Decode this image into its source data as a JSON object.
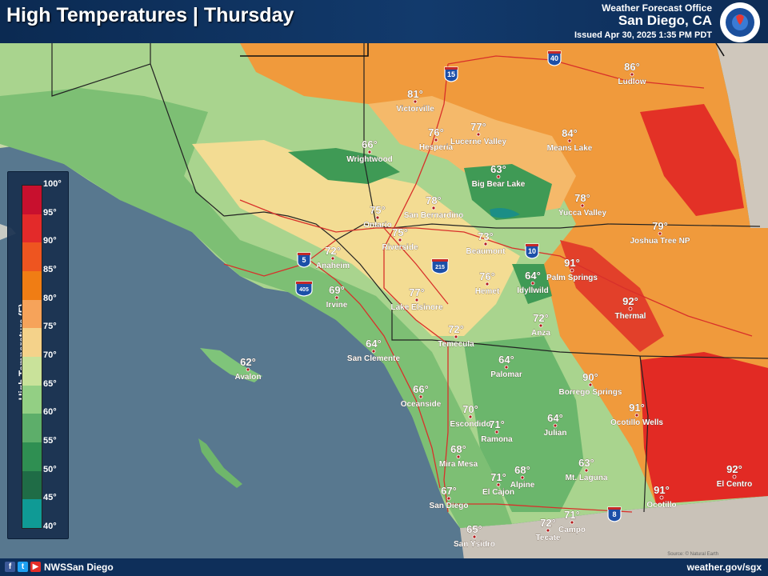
{
  "header": {
    "title": "High Temperatures | Thursday",
    "office": "Weather Forecast Office",
    "location": "San Diego, CA",
    "issued": "Issued Apr 30, 2025 1:35 PM PDT",
    "seal_text": "NATIONAL WEATHER SERVICE"
  },
  "footer": {
    "handle": "NWSSan Diego",
    "url": "weather.gov/sgx",
    "social_icons": [
      "facebook-icon",
      "twitter-icon",
      "youtube-icon"
    ]
  },
  "credit": "Source: © Natural Earth",
  "legend": {
    "title": "High Temperature (F)",
    "ticks": [
      "100°",
      "95°",
      "90°",
      "85°",
      "80°",
      "75°",
      "70°",
      "65°",
      "60°",
      "55°",
      "50°",
      "45°",
      "40°"
    ],
    "colors": [
      "#c8102e",
      "#e32a2a",
      "#ee5520",
      "#f07d14",
      "#f6a35a",
      "#f4d28a",
      "#c9e29a",
      "#93cf84",
      "#5dae6a",
      "#2f8f52",
      "#1f6c46",
      "#0f9a95",
      "#2ed3c9"
    ]
  },
  "highways": [
    {
      "label": "40",
      "type": "interstate"
    },
    {
      "label": "15",
      "type": "interstate"
    },
    {
      "label": "5",
      "type": "interstate"
    },
    {
      "label": "405",
      "type": "interstate"
    },
    {
      "label": "215",
      "type": "interstate"
    },
    {
      "label": "10",
      "type": "interstate"
    },
    {
      "label": "8",
      "type": "interstate"
    }
  ],
  "cities": [
    {
      "name": "Ludlow",
      "temp": "86°"
    },
    {
      "name": "Victorville",
      "temp": "81°"
    },
    {
      "name": "Hesperia",
      "temp": "76°"
    },
    {
      "name": "Lucerne Valley",
      "temp": "77°"
    },
    {
      "name": "Means Lake",
      "temp": "84°"
    },
    {
      "name": "Wrightwood",
      "temp": "66°"
    },
    {
      "name": "Big Bear Lake",
      "temp": "63°"
    },
    {
      "name": "San Bernardino",
      "temp": "78°"
    },
    {
      "name": "Yucca Valley",
      "temp": "78°"
    },
    {
      "name": "Ontario",
      "temp": "75°"
    },
    {
      "name": "Riverside",
      "temp": "75°"
    },
    {
      "name": "Joshua Tree NP",
      "temp": "79°"
    },
    {
      "name": "Anaheim",
      "temp": "72°"
    },
    {
      "name": "Beaumont",
      "temp": "73°"
    },
    {
      "name": "Palm Springs",
      "temp": "91°"
    },
    {
      "name": "Irvine",
      "temp": "69°"
    },
    {
      "name": "Hemet",
      "temp": "76°"
    },
    {
      "name": "Idyllwild",
      "temp": "64°"
    },
    {
      "name": "Lake Elsinore",
      "temp": "77°"
    },
    {
      "name": "Thermal",
      "temp": "92°"
    },
    {
      "name": "Anza",
      "temp": "72°"
    },
    {
      "name": "Temecula",
      "temp": "72°"
    },
    {
      "name": "San Clemente",
      "temp": "64°"
    },
    {
      "name": "Avalon",
      "temp": "62°"
    },
    {
      "name": "Palomar",
      "temp": "64°"
    },
    {
      "name": "Borrego Springs",
      "temp": "90°"
    },
    {
      "name": "Oceanside",
      "temp": "66°"
    },
    {
      "name": "Ocotillo Wells",
      "temp": "91°"
    },
    {
      "name": "Escondido",
      "temp": "70°"
    },
    {
      "name": "Ramona",
      "temp": "71°"
    },
    {
      "name": "Julian",
      "temp": "64°"
    },
    {
      "name": "Mira Mesa",
      "temp": "68°"
    },
    {
      "name": "Mt. Laguna",
      "temp": "63°"
    },
    {
      "name": "El Centro",
      "temp": "92°"
    },
    {
      "name": "El Cajon",
      "temp": "71°"
    },
    {
      "name": "Alpine",
      "temp": "68°"
    },
    {
      "name": "San Diego",
      "temp": "67°"
    },
    {
      "name": "Ocotillo",
      "temp": "91°"
    },
    {
      "name": "Campo",
      "temp": "71°"
    },
    {
      "name": "Tecate",
      "temp": "72°"
    },
    {
      "name": "San Ysidro",
      "temp": "65°"
    }
  ]
}
